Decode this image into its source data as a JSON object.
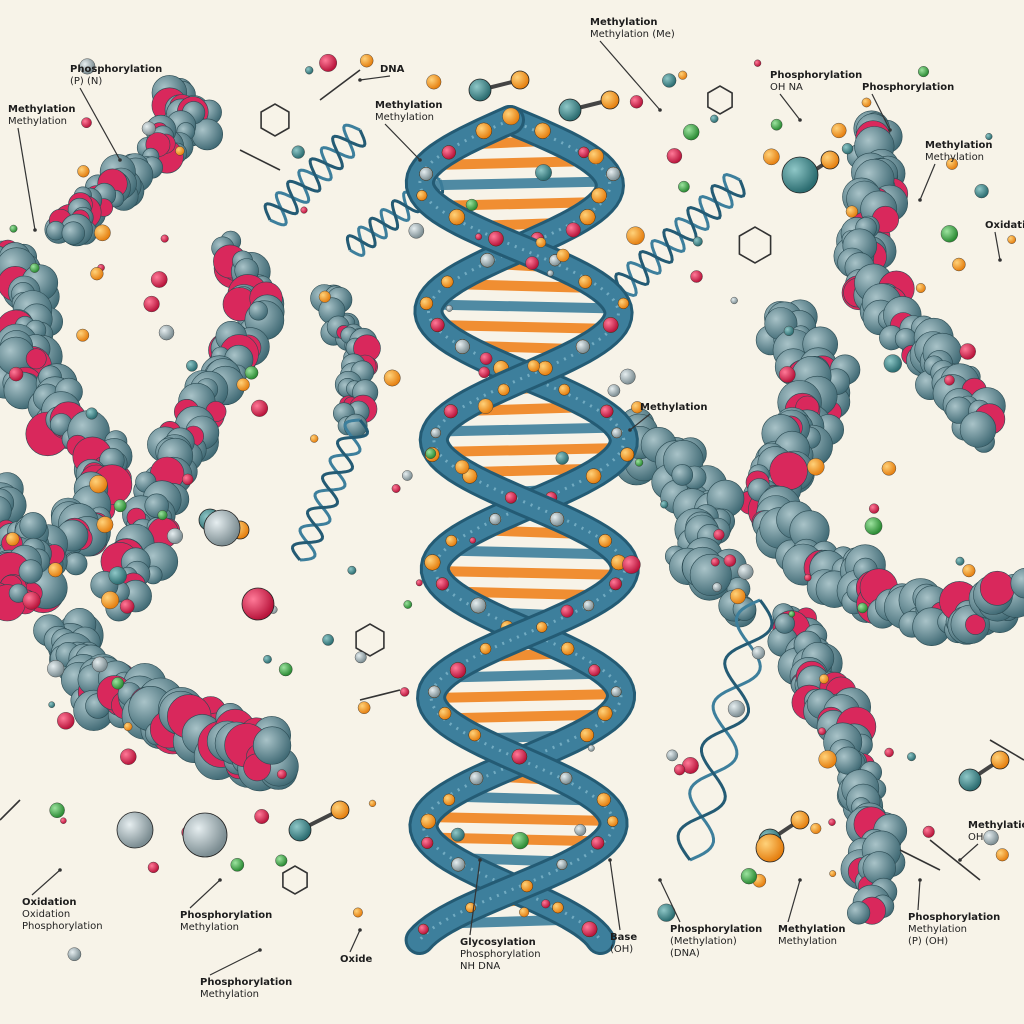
{
  "labels": [
    {
      "id": "tl-phos",
      "text": "Phosphorylation",
      "sub": "(P)  (N)"
    },
    {
      "id": "tl-methyl",
      "text": "Methylation",
      "sub": "Methylation"
    },
    {
      "id": "top-dna",
      "text": "DNA"
    },
    {
      "id": "top-methylation",
      "text": "Methylation",
      "sub": "Methylation"
    },
    {
      "id": "top-center",
      "text": "Methylation",
      "sub": "Methylation (Me)"
    },
    {
      "id": "tr-phos",
      "text": "Phosphorylation",
      "sub": "OH   NA"
    },
    {
      "id": "tr-phos2",
      "text": "Phosphorylation"
    },
    {
      "id": "r-methyl",
      "text": "Methylation",
      "sub": "Methylation"
    },
    {
      "id": "r-oxid",
      "text": "Oxidation"
    },
    {
      "id": "mid-methyl",
      "text": "Methylation"
    },
    {
      "id": "rb-methyl",
      "text": "Methylation",
      "sub": "OH"
    },
    {
      "id": "bl-oxid",
      "text": "Oxidation",
      "sub": "Oxidation",
      "sub2": "Phosphorylation"
    },
    {
      "id": "b-phos",
      "text": "Phosphorylation",
      "sub": "Methylation"
    },
    {
      "id": "b-oxide",
      "text": "Oxide"
    },
    {
      "id": "b-phos2",
      "text": "Phosphorylation",
      "sub": "Methylation"
    },
    {
      "id": "b-glyc",
      "text": "Glycosylation",
      "sub": "Phosphorylation",
      "sub2": "NH   DNA"
    },
    {
      "id": "b-base",
      "text": "Base",
      "sub": "(OH)"
    },
    {
      "id": "b-phos3",
      "text": "Phosphorylation",
      "sub": "(Methylation)",
      "sub2": "(DNA)"
    },
    {
      "id": "b-methyl",
      "text": "Methylation",
      "sub": "Methylation"
    },
    {
      "id": "br-prot",
      "text": "Phosphorylation",
      "sub": "Methylation",
      "sub2": "(P)  (OH)"
    }
  ],
  "colors": {
    "backbone": "#3d7f9c",
    "backbone_dark": "#245b74",
    "rung": "#f0841f",
    "protein": "#4d7784",
    "accent": "#d9285c",
    "atom_orange": "#f39a1e",
    "atom_red": "#d81f4a",
    "atom_teal": "#3f8a8a",
    "atom_gray": "#9aa9ad",
    "atom_green": "#3aa843"
  }
}
